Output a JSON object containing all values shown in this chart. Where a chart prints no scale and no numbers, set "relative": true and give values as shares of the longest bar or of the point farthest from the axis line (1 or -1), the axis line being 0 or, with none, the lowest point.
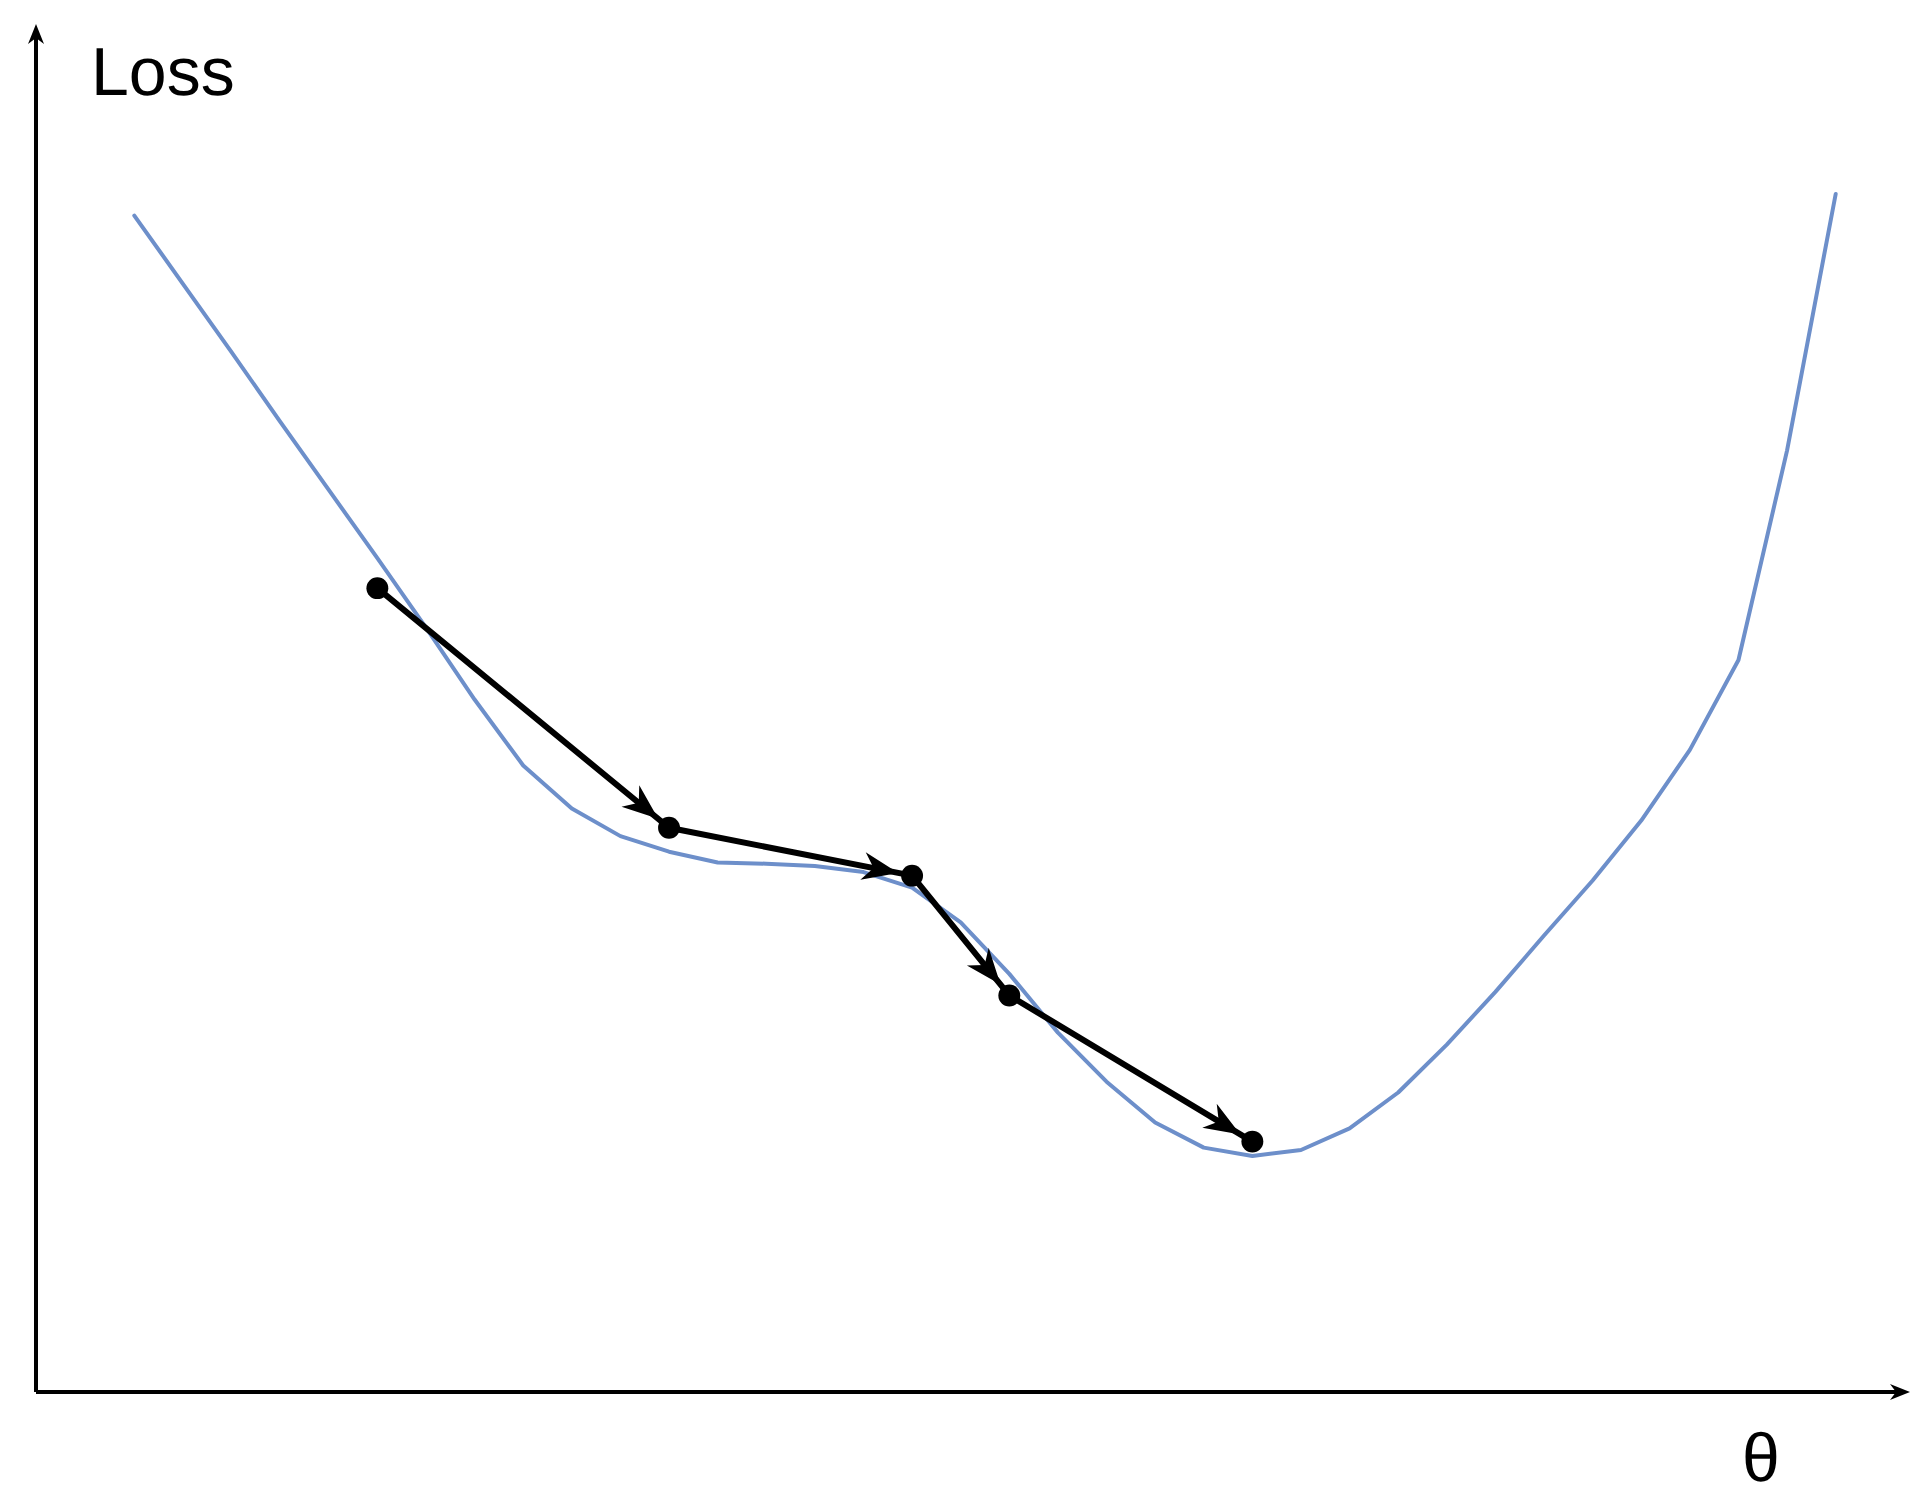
{
  "chart_data": {
    "type": "line",
    "relative": true,
    "xlabel": "θ",
    "ylabel": "Loss",
    "categories": [
      null,
      null,
      null,
      null,
      null,
      null,
      null,
      null,
      null,
      null,
      null,
      null,
      null,
      null,
      null,
      null,
      null,
      null,
      null,
      null,
      null,
      null,
      null,
      null,
      null,
      null,
      null,
      null,
      null,
      null,
      null,
      null,
      null,
      null,
      null,
      null
    ],
    "series": [
      {
        "type": "line",
        "color": "#6d8fca",
        "values": [
          0.982,
          0.925,
          0.868,
          0.81,
          0.753,
          0.696,
          0.638,
          0.578,
          0.523,
          0.487,
          0.464,
          0.451,
          0.442,
          0.441,
          0.439,
          0.434,
          0.421,
          0.392,
          0.349,
          0.3,
          0.259,
          0.225,
          0.204,
          0.197,
          0.202,
          0.22,
          0.25,
          0.29,
          0.334,
          0.381,
          0.427,
          0.477,
          0.536,
          0.611,
          0.786,
          1
        ]
      },
      {
        "type": "line",
        "color": "#000000",
        "marker": "circle",
        "values": [
          null,
          null,
          null,
          null,
          null,
          0.671,
          null,
          null,
          null,
          null,
          null,
          0.471,
          null,
          null,
          null,
          null,
          0.431,
          null,
          0.331,
          null,
          null,
          null,
          null,
          0.209,
          null,
          null,
          null,
          null,
          null,
          null,
          null,
          null,
          null,
          null,
          null,
          null
        ]
      }
    ]
  }
}
